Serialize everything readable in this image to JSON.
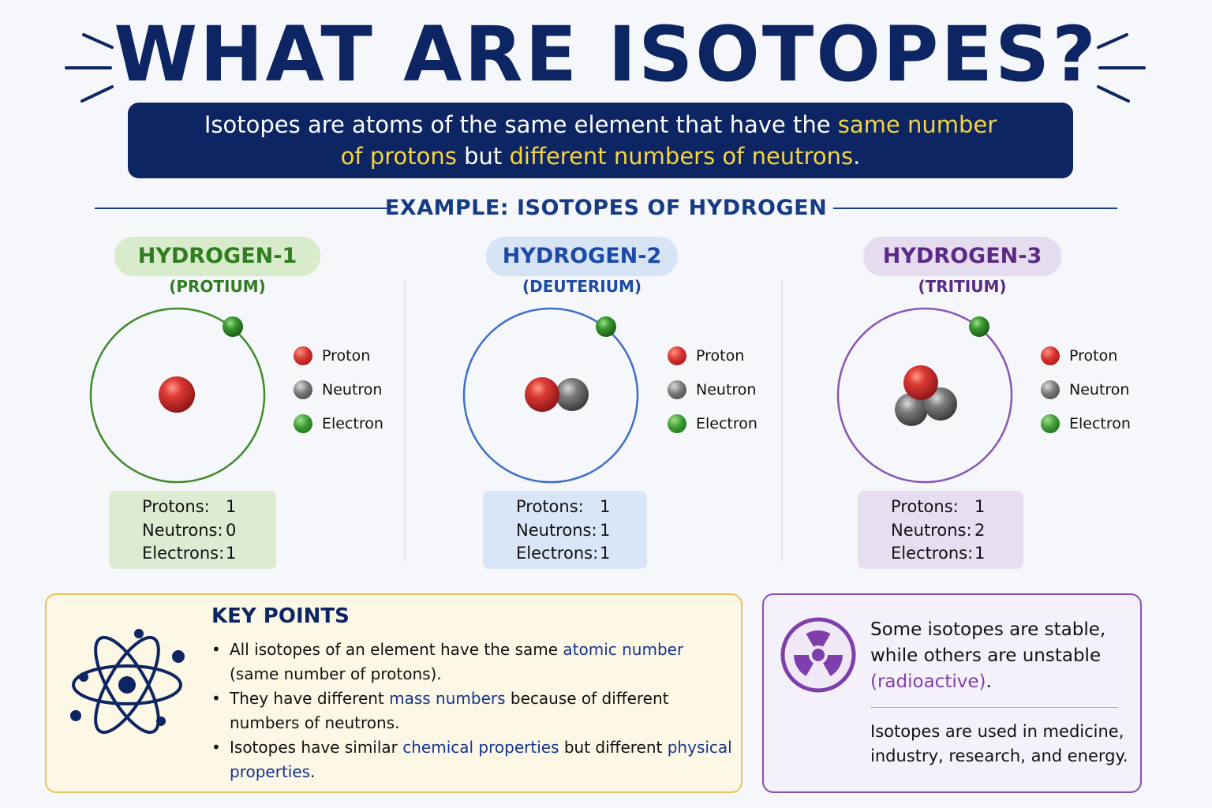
{
  "title": "WHAT ARE ISOTOPES?",
  "definition": {
    "p1": "Isotopes are atoms of the same element that have the ",
    "h1": "same number",
    "h2": "of protons",
    "p2": " but ",
    "h3": "different numbers of neutrons",
    "p3": "."
  },
  "example_heading": "EXAMPLE: ISOTOPES OF HYDROGEN",
  "legend": [
    "Proton",
    "Neutron",
    "Electron"
  ],
  "count_labels": [
    "Protons:",
    "Neutrons:",
    "Electrons:"
  ],
  "isotopes": [
    {
      "name": "HYDROGEN-1",
      "subname": "(PROTIUM)",
      "protons": "1",
      "neutrons": "0",
      "electrons": "1"
    },
    {
      "name": "HYDROGEN-2",
      "subname": "(DEUTERIUM)",
      "protons": "1",
      "neutrons": "1",
      "electrons": "1"
    },
    {
      "name": "HYDROGEN-3",
      "subname": "(TRITIUM)",
      "protons": "1",
      "neutrons": "2",
      "electrons": "1"
    }
  ],
  "key_points": {
    "title": "KEY POINTS",
    "items": [
      {
        "a": "All isotopes of an element have the same ",
        "k1": "atomic number",
        "b": " (same number of protons).",
        "k2": "",
        "c": ""
      },
      {
        "a": "They have different ",
        "k1": "mass numbers",
        "b": " because of different numbers of neutrons.",
        "k2": "",
        "c": ""
      },
      {
        "a": "Isotopes have similar ",
        "k1": "chemical properties",
        "b": " but different ",
        "k2": "physical properties",
        "c": "."
      }
    ]
  },
  "info": {
    "t1": "Some isotopes are stable, while others are unstable ",
    "t1_highlight": "(radioactive)",
    "t1_end": ".",
    "t2": "Isotopes are used in medicine, industry, research, and energy."
  },
  "colors": {
    "navy": "#0d2663",
    "highlight_yellow": "#f8d33b",
    "hydrogen1": "#2f7d1f",
    "hydrogen2": "#1d4aa8",
    "hydrogen3": "#5a2a86",
    "proton": "#c8262b",
    "neutron": "#6b6b6b",
    "electron": "#2e8a2a",
    "radioactive": "#7e3fad"
  },
  "icons": {
    "atom": "atom-icon",
    "radiation": "radiation-icon"
  }
}
